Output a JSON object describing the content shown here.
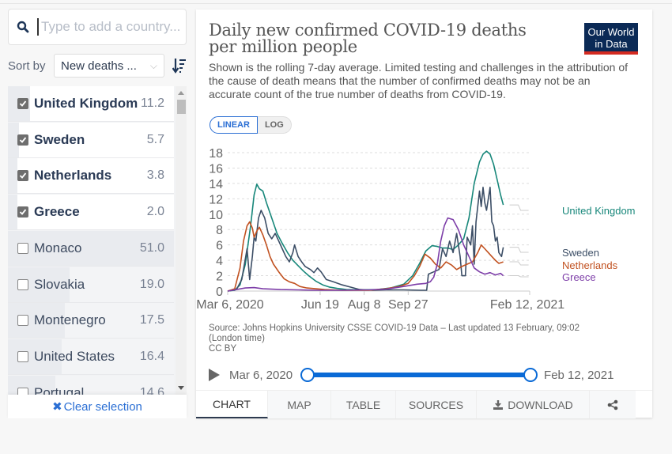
{
  "sidebar": {
    "search_placeholder": "Type to add a country...",
    "sort_label": "Sort by",
    "sort_value": "New deaths ...",
    "clear_label": "Clear selection",
    "countries": [
      {
        "name": "United Kingdom",
        "value": "11.2",
        "selected": true
      },
      {
        "name": "Sweden",
        "value": "5.7",
        "selected": true
      },
      {
        "name": "Netherlands",
        "value": "3.8",
        "selected": true
      },
      {
        "name": "Greece",
        "value": "2.0",
        "selected": true
      },
      {
        "name": "Monaco",
        "value": "51.0",
        "selected": false
      },
      {
        "name": "Slovakia",
        "value": "19.0",
        "selected": false
      },
      {
        "name": "Montenegro",
        "value": "17.5",
        "selected": false
      },
      {
        "name": "United States",
        "value": "16.4",
        "selected": false
      },
      {
        "name": "Portugal",
        "value": "14.6",
        "selected": false
      }
    ]
  },
  "card": {
    "title": "Daily new confirmed COVID-19 deaths per million people",
    "subtitle": "Shown is the rolling 7-day average. Limited testing and challenges in the attribution of the cause of death means that the number of confirmed deaths may not be an accurate count of the true number of deaths from COVID-19.",
    "logo": [
      "Our World",
      "in Data"
    ],
    "scale_linear": "LINEAR",
    "scale_log": "LOG",
    "source_line1": "Source: Johns Hopkins University CSSE COVID-19 Data – Last updated 13 February, 09:02",
    "source_line2": "(London time)",
    "license": "CC BY",
    "timeline_start": "Mar 6, 2020",
    "timeline_end": "Feb 12, 2021",
    "timeline_range": [
      0,
      1
    ],
    "tabs": [
      "CHART",
      "MAP",
      "TABLE",
      "SOURCES",
      "DOWNLOAD"
    ],
    "active_tab": "CHART"
  },
  "chart_data": {
    "type": "line",
    "title": "Daily new confirmed COVID-19 deaths per million people",
    "xlabel": "",
    "ylabel": "",
    "ylim": [
      0,
      18
    ],
    "yticks": [
      0,
      2,
      4,
      6,
      8,
      10,
      12,
      14,
      16,
      18
    ],
    "x_domain_days": [
      0,
      343
    ],
    "xticks": [
      {
        "day": 0,
        "label": "Mar 6, 2020"
      },
      {
        "day": 105,
        "label": "Jun 19"
      },
      {
        "day": 155,
        "label": "Aug 8"
      },
      {
        "day": 205,
        "label": "Sep 27"
      },
      {
        "day": 343,
        "label": "Feb 12, 2021"
      }
    ],
    "grid": true,
    "legend": "right-end-labels",
    "series": [
      {
        "name": "United Kingdom",
        "color": "#17877a",
        "points": [
          [
            0,
            0
          ],
          [
            8,
            0.1
          ],
          [
            14,
            0.8
          ],
          [
            20,
            3.5
          ],
          [
            26,
            8.5
          ],
          [
            30,
            12.5
          ],
          [
            33,
            13.9
          ],
          [
            36,
            13.3
          ],
          [
            40,
            13.0
          ],
          [
            44,
            11.5
          ],
          [
            50,
            9.5
          ],
          [
            56,
            7.5
          ],
          [
            62,
            6.2
          ],
          [
            68,
            5.0
          ],
          [
            74,
            4.0
          ],
          [
            80,
            3.3
          ],
          [
            86,
            2.6
          ],
          [
            92,
            2.0
          ],
          [
            100,
            1.3
          ],
          [
            108,
            0.8
          ],
          [
            116,
            0.5
          ],
          [
            124,
            0.35
          ],
          [
            135,
            0.2
          ],
          [
            150,
            0.15
          ],
          [
            170,
            0.2
          ],
          [
            185,
            0.4
          ],
          [
            200,
            0.9
          ],
          [
            210,
            2.0
          ],
          [
            218,
            3.6
          ],
          [
            225,
            5.2
          ],
          [
            232,
            5.9
          ],
          [
            238,
            5.8
          ],
          [
            244,
            5.6
          ],
          [
            250,
            5.6
          ],
          [
            256,
            5.4
          ],
          [
            262,
            6.0
          ],
          [
            268,
            6.8
          ],
          [
            274,
            9.5
          ],
          [
            280,
            14.0
          ],
          [
            286,
            16.8
          ],
          [
            290,
            17.8
          ],
          [
            294,
            18.2
          ],
          [
            298,
            17.8
          ],
          [
            302,
            16.5
          ],
          [
            306,
            14.5
          ],
          [
            310,
            12.5
          ],
          [
            313,
            11.2
          ]
        ]
      },
      {
        "name": "Sweden",
        "color": "#3c4e66",
        "points": [
          [
            0,
            0
          ],
          [
            10,
            0.2
          ],
          [
            16,
            1.5
          ],
          [
            22,
            5.5
          ],
          [
            25,
            1.5
          ],
          [
            28,
            4.5
          ],
          [
            30,
            7.0
          ],
          [
            32,
            6.5
          ],
          [
            35,
            9.5
          ],
          [
            38,
            10.5
          ],
          [
            42,
            9.5
          ],
          [
            46,
            7.5
          ],
          [
            50,
            6.8
          ],
          [
            54,
            7.5
          ],
          [
            58,
            6.5
          ],
          [
            62,
            5.5
          ],
          [
            66,
            4.5
          ],
          [
            70,
            3.8
          ],
          [
            74,
            5.0
          ],
          [
            76,
            6.0
          ],
          [
            80,
            4.5
          ],
          [
            84,
            3.8
          ],
          [
            88,
            3.2
          ],
          [
            94,
            2.8
          ],
          [
            98,
            2.4
          ],
          [
            102,
            3.0
          ],
          [
            106,
            2.5
          ],
          [
            112,
            1.5
          ],
          [
            120,
            1.2
          ],
          [
            130,
            0.8
          ],
          [
            140,
            0.5
          ],
          [
            150,
            0.2
          ],
          [
            165,
            0.1
          ],
          [
            180,
            0.15
          ],
          [
            200,
            0.15
          ],
          [
            220,
            0.1
          ],
          [
            226,
            0.1
          ],
          [
            228,
            2.2
          ],
          [
            234,
            2.5
          ],
          [
            240,
            2.8
          ],
          [
            244,
            5.5
          ],
          [
            248,
            4.5
          ],
          [
            252,
            6.5
          ],
          [
            256,
            5.0
          ],
          [
            260,
            7.5
          ],
          [
            264,
            4.5
          ],
          [
            266,
            2.0
          ],
          [
            270,
            2.0
          ],
          [
            272,
            7.0
          ],
          [
            276,
            6.0
          ],
          [
            278,
            8.5
          ],
          [
            280,
            3.5
          ],
          [
            282,
            9.0
          ],
          [
            286,
            13.0
          ],
          [
            288,
            11.0
          ],
          [
            290,
            13.5
          ],
          [
            292,
            11.5
          ],
          [
            294,
            10.5
          ],
          [
            298,
            13.5
          ],
          [
            300,
            9.0
          ],
          [
            302,
            8.5
          ],
          [
            304,
            6.5
          ],
          [
            306,
            7.0
          ],
          [
            308,
            5.0
          ],
          [
            311,
            4.5
          ],
          [
            313,
            5.7
          ]
        ]
      },
      {
        "name": "Netherlands",
        "color": "#c15120",
        "points": [
          [
            0,
            0
          ],
          [
            8,
            0.3
          ],
          [
            14,
            3.0
          ],
          [
            18,
            6.5
          ],
          [
            22,
            8.5
          ],
          [
            25,
            9.0
          ],
          [
            28,
            8.2
          ],
          [
            30,
            7.0
          ],
          [
            33,
            7.8
          ],
          [
            36,
            8.3
          ],
          [
            40,
            7.3
          ],
          [
            44,
            6.0
          ],
          [
            48,
            4.5
          ],
          [
            52,
            3.5
          ],
          [
            58,
            2.5
          ],
          [
            64,
            1.6
          ],
          [
            70,
            1.2
          ],
          [
            76,
            1.0
          ],
          [
            82,
            0.6
          ],
          [
            90,
            0.4
          ],
          [
            100,
            0.3
          ],
          [
            110,
            0.2
          ],
          [
            130,
            0.1
          ],
          [
            160,
            0.1
          ],
          [
            180,
            0.3
          ],
          [
            195,
            0.6
          ],
          [
            205,
            1.0
          ],
          [
            212,
            2.0
          ],
          [
            218,
            3.2
          ],
          [
            224,
            4.8
          ],
          [
            230,
            4.3
          ],
          [
            236,
            3.5
          ],
          [
            242,
            3.0
          ],
          [
            248,
            3.8
          ],
          [
            254,
            3.4
          ],
          [
            260,
            2.8
          ],
          [
            266,
            3.2
          ],
          [
            272,
            3.5
          ],
          [
            278,
            3.8
          ],
          [
            284,
            5.0
          ],
          [
            288,
            6.0
          ],
          [
            292,
            5.5
          ],
          [
            296,
            5.0
          ],
          [
            300,
            4.5
          ],
          [
            304,
            4.0
          ],
          [
            308,
            3.6
          ],
          [
            313,
            3.8
          ]
        ]
      },
      {
        "name": "Greece",
        "color": "#7d3ea8",
        "points": [
          [
            0,
            0
          ],
          [
            10,
            0.2
          ],
          [
            20,
            0.4
          ],
          [
            30,
            0.45
          ],
          [
            40,
            0.3
          ],
          [
            60,
            0.2
          ],
          [
            80,
            0.15
          ],
          [
            100,
            0.1
          ],
          [
            130,
            0.1
          ],
          [
            160,
            0.15
          ],
          [
            180,
            0.25
          ],
          [
            200,
            0.6
          ],
          [
            215,
            0.9
          ],
          [
            225,
            1.0
          ],
          [
            230,
            1.2
          ],
          [
            234,
            1.8
          ],
          [
            238,
            3.5
          ],
          [
            242,
            6.5
          ],
          [
            246,
            8.5
          ],
          [
            250,
            9.5
          ],
          [
            256,
            9.3
          ],
          [
            262,
            8.0
          ],
          [
            268,
            6.0
          ],
          [
            274,
            4.5
          ],
          [
            280,
            3.0
          ],
          [
            286,
            2.5
          ],
          [
            292,
            2.2
          ],
          [
            298,
            2.4
          ],
          [
            304,
            2.1
          ],
          [
            310,
            2.3
          ],
          [
            313,
            2.0
          ]
        ]
      }
    ]
  }
}
